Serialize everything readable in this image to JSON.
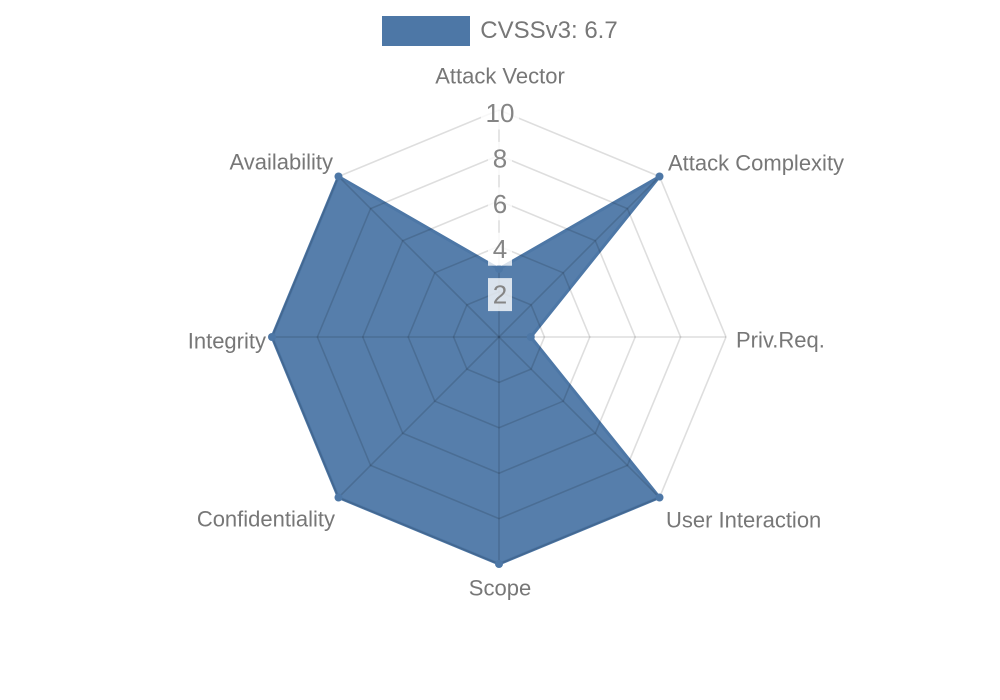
{
  "legend": {
    "label": "CVSSv3: 6.7"
  },
  "chart_data": {
    "type": "radar",
    "title": "",
    "categories": [
      "Attack Vector",
      "Attack Complexity",
      "Priv.Req.",
      "User Interaction",
      "Scope",
      "Confidentiality",
      "Integrity",
      "Availability"
    ],
    "series": [
      {
        "name": "CVSSv3: 6.7",
        "values": [
          3.0,
          10,
          1.4,
          10,
          10,
          10,
          10,
          10
        ]
      }
    ],
    "rmin": 0,
    "rmax": 10,
    "ticks": [
      2,
      4,
      6,
      8,
      10
    ],
    "grid": "polygon-rings-with-spokes",
    "legend_position": "top-center",
    "colors": {
      "series_fill": "rgba(77,119,166,0.95)",
      "series_line": "#4d77a6",
      "series_point": "#4d77a6",
      "grid_line": "rgba(0,0,0,0.13)",
      "tick_text": "#858585",
      "tick_backdrop": "rgba(255,255,255,0.78)",
      "axis_label_text": "#777777",
      "legend_text": "#777777"
    }
  }
}
